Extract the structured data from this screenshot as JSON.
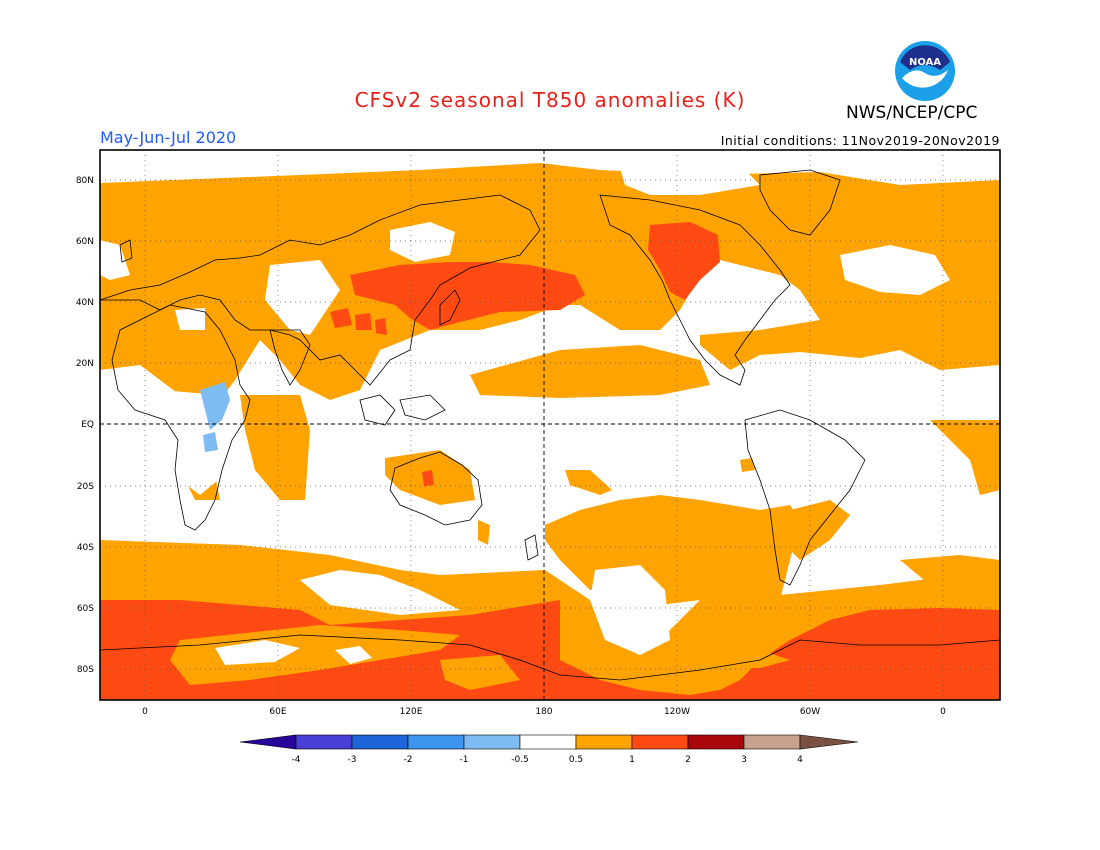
{
  "title": "CFSv2 seasonal T850 anomalies (K)",
  "period": "May-Jun-Jul 2020",
  "agency": "NWS/NCEP/CPC",
  "initial_conditions": "Initial conditions: 11Nov2019-20Nov2019",
  "logo": {
    "text": "NOAA"
  },
  "lat_labels": [
    "80N",
    "60N",
    "40N",
    "20N",
    "EQ",
    "20S",
    "40S",
    "60S",
    "80S"
  ],
  "lon_labels": [
    "0",
    "60E",
    "120E",
    "180",
    "120W",
    "60W",
    "0"
  ],
  "colorbar": {
    "tick_labels": [
      "-4",
      "-3",
      "-2",
      "-1",
      "-0.5",
      "0.5",
      "1",
      "2",
      "3",
      "4"
    ],
    "colors": [
      "#3a0fb8",
      "#4a3fd4",
      "#1f64d8",
      "#3d95f0",
      "#7ebcf4",
      "#ffffff",
      "#ffa300",
      "#ff4a14",
      "#a8070c",
      "#c8a18f",
      "#7a5040"
    ],
    "left_arrow": "#27059a",
    "right_arrow": "#7a5040"
  },
  "map_colors": {
    "warm_0_5_1": "#ffa300",
    "warm_1_2": "#ff4a14",
    "cool_m1_m0_5": "#7ebcf4"
  }
}
